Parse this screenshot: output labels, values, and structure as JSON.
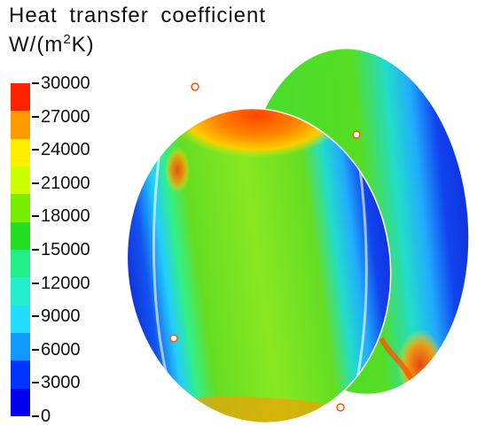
{
  "title_line1": "Heat transfer coefficient",
  "unit": {
    "prefix": "W/(m",
    "exponent": "2",
    "suffix": "K)"
  },
  "colorbar": {
    "ticks": [
      "30000",
      "27000",
      "24000",
      "21000",
      "18000",
      "15000",
      "12000",
      "9000",
      "6000",
      "3000",
      "0"
    ],
    "colors": [
      "#ff2200",
      "#ff9900",
      "#ffee00",
      "#ccff00",
      "#77ee00",
      "#22dd22",
      "#22ee88",
      "#22eecc",
      "#22ddff",
      "#1199ff",
      "#0033ff",
      "#0000ee"
    ]
  },
  "colors": {
    "background": "#ffffff",
    "low": "#1133dd",
    "mid": "#66dd22",
    "high": "#ff3300"
  }
}
